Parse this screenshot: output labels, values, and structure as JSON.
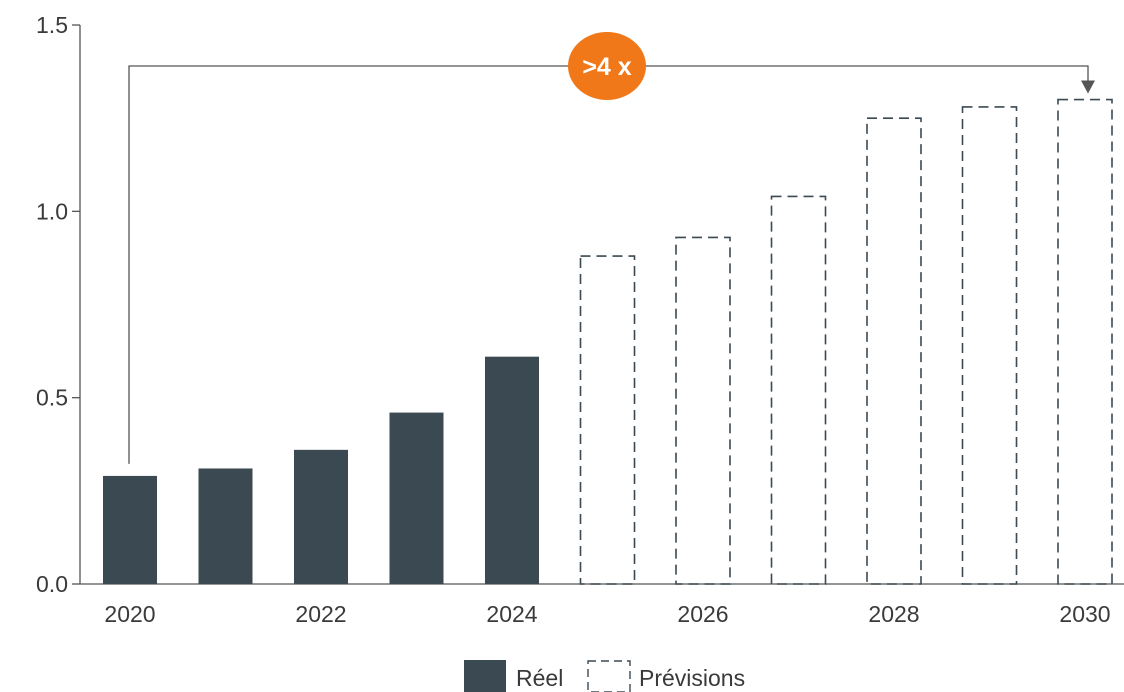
{
  "chart_data": {
    "type": "bar",
    "categories": [
      "2020",
      "2021",
      "2022",
      "2023",
      "2024",
      "2025",
      "2026",
      "2027",
      "2028",
      "2029",
      "2030"
    ],
    "x_tick_labels": [
      "2020",
      "2022",
      "2024",
      "2026",
      "2028",
      "2030"
    ],
    "y_tick_labels": [
      "0.0",
      "0.5",
      "1.0",
      "1.5"
    ],
    "ylim": [
      0,
      1.5
    ],
    "series": [
      {
        "name": "Réel",
        "style": "solid",
        "values": [
          0.29,
          0.31,
          0.36,
          0.46,
          0.61,
          null,
          null,
          null,
          null,
          null,
          null
        ]
      },
      {
        "name": "Prévisions",
        "style": "dashed",
        "values": [
          null,
          null,
          null,
          null,
          null,
          0.88,
          0.93,
          1.04,
          1.25,
          1.28,
          1.3
        ]
      }
    ],
    "annotation": {
      "text": ">4 x",
      "from": "2020",
      "to": "2030"
    },
    "legend_position": "bottom-center",
    "colors": {
      "actual": "#3b4a52",
      "forecast_stroke": "#3b4a52",
      "badge": "#f07818",
      "badge_text": "#ffffff",
      "axis": "#555555",
      "text": "#3a3a3a"
    }
  }
}
